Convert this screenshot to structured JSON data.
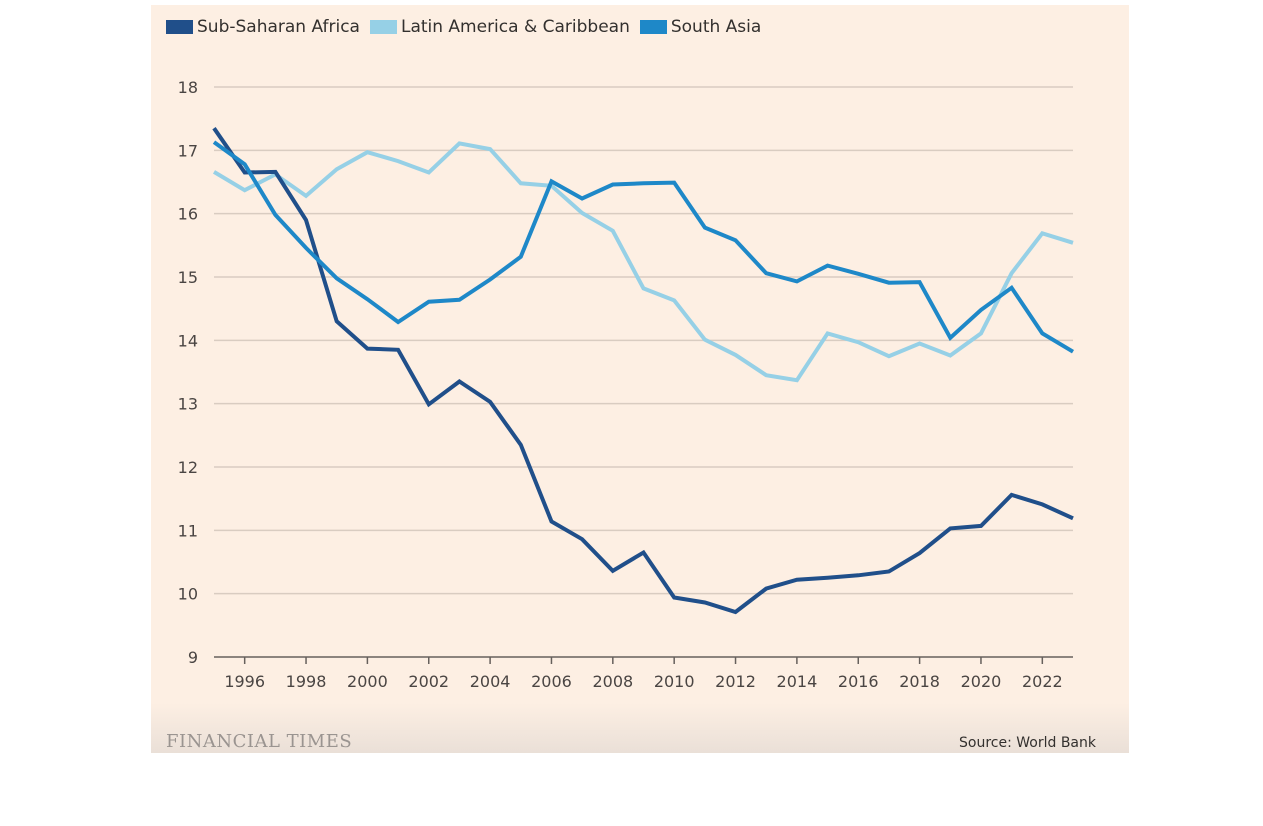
{
  "chart_data": {
    "type": "line",
    "xlabel": "",
    "ylabel": "",
    "ylim": [
      9,
      18
    ],
    "xlim": [
      1995,
      2023
    ],
    "yticks": [
      9,
      10,
      11,
      12,
      13,
      14,
      15,
      16,
      17,
      18
    ],
    "xticks": [
      1996,
      1998,
      2000,
      2002,
      2004,
      2006,
      2008,
      2010,
      2012,
      2014,
      2016,
      2018,
      2020,
      2022
    ],
    "grid": "horizontal",
    "legend_position": "top-left",
    "x": [
      1995,
      1996,
      1997,
      1998,
      1999,
      2000,
      2001,
      2002,
      2003,
      2004,
      2005,
      2006,
      2007,
      2008,
      2009,
      2010,
      2011,
      2012,
      2013,
      2014,
      2015,
      2016,
      2017,
      2018,
      2019,
      2020,
      2021,
      2022,
      2023
    ],
    "series": [
      {
        "name": "Sub-Saharan Africa",
        "color": "#204f8a",
        "values": [
          17.35,
          16.65,
          16.66,
          15.9,
          14.3,
          13.87,
          13.85,
          12.99,
          13.35,
          13.03,
          12.35,
          11.14,
          10.86,
          10.36,
          10.65,
          9.94,
          9.86,
          9.71,
          10.08,
          10.22,
          10.25,
          10.29,
          10.35,
          10.64,
          11.03,
          11.07,
          11.56,
          11.41,
          11.19
        ]
      },
      {
        "name": "Latin America & Caribbean",
        "color": "#96d0e6",
        "values": [
          16.66,
          16.37,
          16.62,
          16.28,
          16.7,
          16.97,
          16.83,
          16.65,
          17.11,
          17.02,
          16.48,
          16.44,
          16.01,
          15.73,
          14.82,
          14.63,
          14.01,
          13.77,
          13.45,
          13.37,
          14.11,
          13.97,
          13.75,
          13.95,
          13.76,
          14.11,
          15.06,
          15.69,
          15.54
        ]
      },
      {
        "name": "South Asia",
        "color": "#1e88c8",
        "values": [
          17.13,
          16.78,
          15.98,
          15.46,
          14.98,
          14.65,
          14.29,
          14.61,
          14.64,
          14.96,
          15.32,
          16.51,
          16.24,
          16.46,
          16.48,
          16.49,
          15.78,
          15.58,
          15.06,
          14.93,
          15.18,
          15.05,
          14.91,
          14.92,
          14.04,
          14.48,
          14.83,
          14.11,
          13.82
        ]
      }
    ],
    "source": "Source: World Bank",
    "brand": "FINANCIAL TIMES"
  },
  "colors": {
    "background": "#fdefe3",
    "grid": "#d9ccc1",
    "axis": "#66605c",
    "text": "#33302e"
  }
}
